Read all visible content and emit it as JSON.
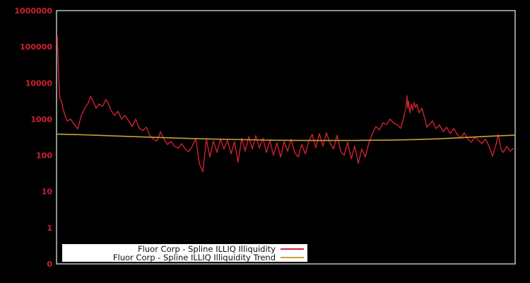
{
  "window": {
    "background": "#000000"
  },
  "legend": {
    "items": [
      {
        "label": "Fluor Corp - Spline ILLIQ Illiquidity",
        "color": "#cd2130"
      },
      {
        "label": "Fluor Corp - Spline ILLIQ Illiquidity Trend",
        "color": "#c7a231"
      }
    ]
  },
  "chart_data": {
    "type": "line",
    "title": "",
    "xlabel": "",
    "ylabel": "",
    "x_units": "normalized 0-1 (no x-axis tick labels shown)",
    "y_scale": "log",
    "ylim": [
      0.1,
      1000000
    ],
    "grid": false,
    "legend_position": "inside-bottom-left",
    "axis_color": "#c0c0c0",
    "tick_label_color": "#cd2130",
    "yticks": [
      {
        "label": "1000000",
        "value": 1000000
      },
      {
        "label": "100000",
        "value": 100000
      },
      {
        "label": "10000",
        "value": 10000
      },
      {
        "label": "1000",
        "value": 1000
      },
      {
        "label": "100",
        "value": 100
      },
      {
        "label": "10",
        "value": 10
      },
      {
        "label": "1",
        "value": 1
      },
      {
        "label": "0",
        "value": 0.1
      }
    ],
    "series": [
      {
        "id": "illiq",
        "name": "Fluor Corp - Spline ILLIQ Illiquidity",
        "color": "#cd2130",
        "width": 1.4,
        "points": [
          [
            0.0015,
            200000
          ],
          [
            0.0031,
            63000
          ],
          [
            0.0046,
            16000
          ],
          [
            0.0062,
            5600
          ],
          [
            0.0077,
            3550
          ],
          [
            0.0108,
            3160
          ],
          [
            0.0139,
            2000
          ],
          [
            0.0185,
            1260
          ],
          [
            0.0231,
            890
          ],
          [
            0.0308,
            1000
          ],
          [
            0.0385,
            710
          ],
          [
            0.0462,
            540
          ],
          [
            0.0539,
            1260
          ],
          [
            0.0616,
            2000
          ],
          [
            0.0693,
            2820
          ],
          [
            0.074,
            4270
          ],
          [
            0.0801,
            3160
          ],
          [
            0.0863,
            2000
          ],
          [
            0.0924,
            2630
          ],
          [
            0.1001,
            2240
          ],
          [
            0.1079,
            3550
          ],
          [
            0.1125,
            2750
          ],
          [
            0.1186,
            1780
          ],
          [
            0.1263,
            1260
          ],
          [
            0.134,
            1660
          ],
          [
            0.1417,
            1000
          ],
          [
            0.1494,
            1260
          ],
          [
            0.1572,
            890
          ],
          [
            0.1649,
            630
          ],
          [
            0.1726,
            1000
          ],
          [
            0.1803,
            560
          ],
          [
            0.188,
            480
          ],
          [
            0.1957,
            600
          ],
          [
            0.2034,
            355
          ],
          [
            0.2111,
            280
          ],
          [
            0.2188,
            250
          ],
          [
            0.2265,
            450
          ],
          [
            0.2342,
            280
          ],
          [
            0.2419,
            200
          ],
          [
            0.2496,
            240
          ],
          [
            0.2573,
            178
          ],
          [
            0.265,
            158
          ],
          [
            0.2727,
            210
          ],
          [
            0.2804,
            151
          ],
          [
            0.2881,
            126
          ],
          [
            0.2958,
            178
          ],
          [
            0.3035,
            290
          ],
          [
            0.3112,
            60
          ],
          [
            0.3189,
            35
          ],
          [
            0.3266,
            280
          ],
          [
            0.3343,
            90
          ],
          [
            0.342,
            250
          ],
          [
            0.3497,
            120
          ],
          [
            0.3574,
            280
          ],
          [
            0.3651,
            150
          ],
          [
            0.3728,
            260
          ],
          [
            0.3805,
            110
          ],
          [
            0.3882,
            240
          ],
          [
            0.3959,
            65
          ],
          [
            0.4037,
            300
          ],
          [
            0.4114,
            130
          ],
          [
            0.4191,
            330
          ],
          [
            0.4268,
            150
          ],
          [
            0.4345,
            350
          ],
          [
            0.4422,
            160
          ],
          [
            0.4499,
            300
          ],
          [
            0.4576,
            120
          ],
          [
            0.4653,
            260
          ],
          [
            0.473,
            100
          ],
          [
            0.4807,
            220
          ],
          [
            0.4884,
            90
          ],
          [
            0.4961,
            240
          ],
          [
            0.5038,
            130
          ],
          [
            0.5115,
            280
          ],
          [
            0.5192,
            120
          ],
          [
            0.5269,
            90
          ],
          [
            0.5346,
            200
          ],
          [
            0.5423,
            110
          ],
          [
            0.55,
            250
          ],
          [
            0.5577,
            380
          ],
          [
            0.5654,
            160
          ],
          [
            0.5731,
            400
          ],
          [
            0.5808,
            180
          ],
          [
            0.5885,
            420
          ],
          [
            0.5962,
            220
          ],
          [
            0.604,
            150
          ],
          [
            0.6117,
            360
          ],
          [
            0.6194,
            130
          ],
          [
            0.6271,
            100
          ],
          [
            0.6348,
            230
          ],
          [
            0.6425,
            80
          ],
          [
            0.6502,
            180
          ],
          [
            0.6579,
            60
          ],
          [
            0.6656,
            150
          ],
          [
            0.6733,
            90
          ],
          [
            0.681,
            220
          ],
          [
            0.6887,
            400
          ],
          [
            0.6965,
            630
          ],
          [
            0.7042,
            500
          ],
          [
            0.7119,
            790
          ],
          [
            0.7196,
            710
          ],
          [
            0.7273,
            1000
          ],
          [
            0.735,
            790
          ],
          [
            0.7427,
            700
          ],
          [
            0.7504,
            560
          ],
          [
            0.755,
            900
          ],
          [
            0.7596,
            1600
          ],
          [
            0.7627,
            2400
          ],
          [
            0.7642,
            4470
          ],
          [
            0.7658,
            2000
          ],
          [
            0.7673,
            3200
          ],
          [
            0.7704,
            1500
          ],
          [
            0.7735,
            2600
          ],
          [
            0.7766,
            1800
          ],
          [
            0.7796,
            2900
          ],
          [
            0.7827,
            2100
          ],
          [
            0.7858,
            2600
          ],
          [
            0.7904,
            1500
          ],
          [
            0.7966,
            2000
          ],
          [
            0.8043,
            900
          ],
          [
            0.8074,
            600
          ],
          [
            0.812,
            700
          ],
          [
            0.8197,
            900
          ],
          [
            0.8274,
            550
          ],
          [
            0.8351,
            700
          ],
          [
            0.8428,
            450
          ],
          [
            0.8505,
            600
          ],
          [
            0.8582,
            400
          ],
          [
            0.8659,
            550
          ],
          [
            0.8736,
            380
          ],
          [
            0.8814,
            300
          ],
          [
            0.8891,
            420
          ],
          [
            0.8968,
            280
          ],
          [
            0.9045,
            230
          ],
          [
            0.9122,
            320
          ],
          [
            0.9199,
            260
          ],
          [
            0.9276,
            210
          ],
          [
            0.9353,
            280
          ],
          [
            0.943,
            180
          ],
          [
            0.9507,
            95
          ],
          [
            0.9584,
            200
          ],
          [
            0.963,
            380
          ],
          [
            0.9692,
            150
          ],
          [
            0.9738,
            120
          ],
          [
            0.9815,
            175
          ],
          [
            0.9892,
            130
          ],
          [
            0.9969,
            160
          ]
        ]
      },
      {
        "id": "trend",
        "name": "Fluor Corp - Spline ILLIQ Illiquidity Trend",
        "color": "#c7a231",
        "width": 1.6,
        "points": [
          [
            0.0,
            385
          ],
          [
            0.054,
            372
          ],
          [
            0.108,
            350
          ],
          [
            0.16,
            333
          ],
          [
            0.262,
            300
          ],
          [
            0.35,
            280
          ],
          [
            0.416,
            270
          ],
          [
            0.48,
            261
          ],
          [
            0.57,
            257
          ],
          [
            0.65,
            258
          ],
          [
            0.724,
            263
          ],
          [
            0.78,
            272
          ],
          [
            0.832,
            287
          ],
          [
            0.88,
            307
          ],
          [
            0.924,
            328
          ],
          [
            0.96,
            345
          ],
          [
            1.0,
            360
          ]
        ]
      }
    ]
  }
}
